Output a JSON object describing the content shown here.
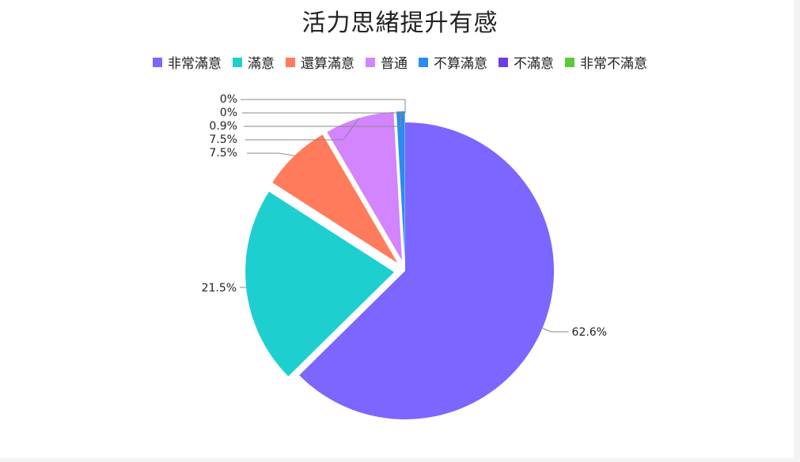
{
  "chart_data": {
    "type": "pie",
    "title": "活力思緒提升有感",
    "legend_position": "top",
    "categories": [
      "非常滿意",
      "滿意",
      "還算滿意",
      "普通",
      "不算滿意",
      "不滿意",
      "非常不滿意"
    ],
    "values": [
      62.6,
      21.5,
      7.5,
      7.5,
      0.9,
      0,
      0
    ],
    "labels": [
      "62.6%",
      "21.5%",
      "7.5%",
      "7.5%",
      "0.9%",
      "0%",
      "0%"
    ],
    "colors": [
      "#7b66ff",
      "#1ecfcf",
      "#ff7b5c",
      "#d384ff",
      "#2a8cf0",
      "#6a3de8",
      "#5cc93a"
    ]
  }
}
